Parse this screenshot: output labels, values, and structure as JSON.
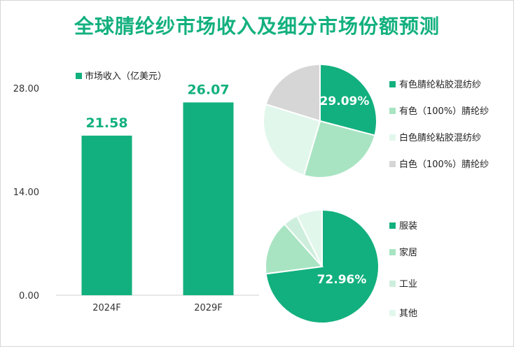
{
  "title": "全球腈纶纱市场收入及细分市场份额预测",
  "chart_data": [
    {
      "type": "bar",
      "categories": [
        "2024F",
        "2029F"
      ],
      "series": [
        {
          "name": "市场收入（亿美元）",
          "values": [
            21.58,
            26.07
          ]
        }
      ],
      "data_labels": [
        "21.58",
        "26.07"
      ],
      "yticks": [
        "0.00",
        "14.00",
        "28.00"
      ],
      "ylim": [
        0,
        28
      ],
      "grid": false,
      "legend": "top",
      "color": "#12b07e"
    },
    {
      "type": "pie",
      "categories": [
        "有色腈纶粘胶混纺纱",
        "有色（100%）腈纶纱",
        "白色腈纶粘胶混纺纱",
        "白色（100%）腈纶纱"
      ],
      "values": [
        29.09,
        25.5,
        25.2,
        20.21
      ],
      "colors": [
        "#12b07e",
        "#a8e4c2",
        "#e2f7ec",
        "#d6d6d6"
      ],
      "data_labels": [
        "29.09%",
        "",
        "",
        ""
      ],
      "legend": "right"
    },
    {
      "type": "pie",
      "categories": [
        "服装",
        "家居",
        "工业",
        "其他"
      ],
      "values": [
        72.96,
        15.5,
        4.2,
        7.34
      ],
      "colors": [
        "#12b07e",
        "#a8e4c2",
        "#cdeedc",
        "#e2f7ec"
      ],
      "data_labels": [
        "72.96%",
        "",
        "",
        ""
      ],
      "legend": "right"
    }
  ]
}
